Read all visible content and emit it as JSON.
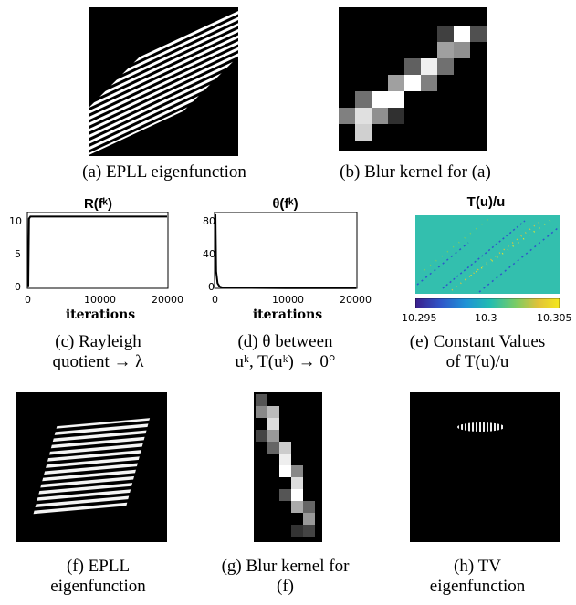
{
  "captions": {
    "a": "(a) EPLL eigenfunction",
    "b": "(b) Blur kernel for (a)",
    "c1": "(c) Rayleigh",
    "c2": "quotient → λ",
    "d1": "(d) θ between",
    "d2": "uᵏ, T(uᵏ) → 0°",
    "e1": "(e) Constant Values",
    "e2": "of T(u)/u",
    "f1": "(f) EPLL",
    "f2": "eigenfunction",
    "g1": "(g) Blur kernel for",
    "g2": "(f)",
    "h1": "(h) TV",
    "h2": "eigenfunction"
  },
  "plots": {
    "c": {
      "title": "R(fᵏ)",
      "xlabel": "iterations",
      "yticks": [
        "10",
        "5",
        "0"
      ],
      "xticks": [
        "0",
        "10000",
        "20000"
      ]
    },
    "d": {
      "title": "θ(fᵏ)",
      "xlabel": "iterations",
      "yticks": [
        "80",
        "40",
        "0"
      ],
      "xticks": [
        "0",
        "10000",
        "20000"
      ]
    },
    "e": {
      "title": "T(u)/u",
      "cbticks": [
        "10.295",
        "10.3",
        "10.305"
      ]
    }
  },
  "chart_data": [
    {
      "type": "line",
      "title": "R(fᵏ)",
      "xlabel": "iterations",
      "ylabel": "",
      "xlim": [
        0,
        20000
      ],
      "ylim": [
        0,
        11
      ],
      "series": [
        {
          "x": [
            0,
            100,
            300,
            1000,
            5000,
            10000,
            20000
          ],
          "y": [
            0.3,
            10.0,
            10.3,
            10.3,
            10.3,
            10.3,
            10.3
          ]
        }
      ]
    },
    {
      "type": "line",
      "title": "θ(fᵏ)",
      "xlabel": "iterations",
      "ylabel": "",
      "xlim": [
        0,
        20000
      ],
      "ylim": [
        0,
        90
      ],
      "series": [
        {
          "x": [
            0,
            100,
            300,
            600,
            1000,
            5000,
            10000,
            20000
          ],
          "y": [
            88,
            20,
            6,
            2,
            1,
            0.5,
            0.3,
            0.2
          ]
        }
      ]
    }
  ],
  "colors": {
    "teal": "#33bfae",
    "colormap": [
      "#3b1f8c",
      "#2f57c9",
      "#1f93d6",
      "#22bdb0",
      "#7ccc63",
      "#e0c23a",
      "#f5e81c"
    ]
  }
}
